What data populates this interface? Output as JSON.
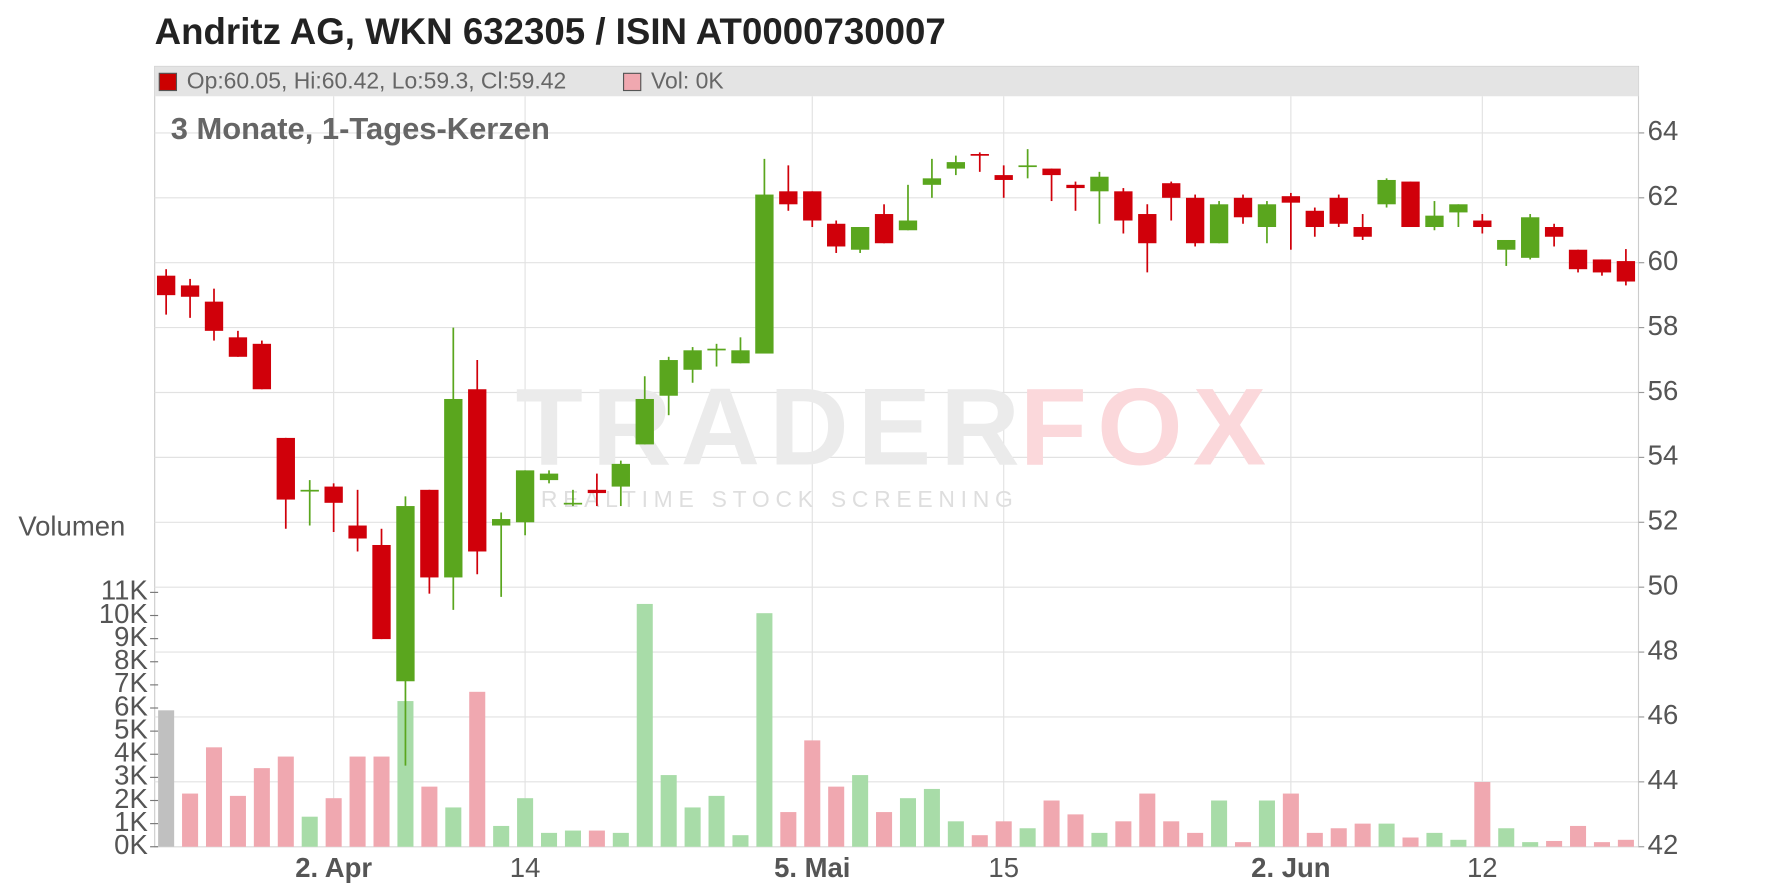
{
  "chart_data": {
    "type": "candlestick",
    "title": "Andritz AG, WKN 632305 / ISIN AT0000730007",
    "subtitle": "3 Monate, 1-Tages-Kerzen",
    "volume_label": "Volumen",
    "legend": [
      {
        "color": "#cc0000",
        "label": "Op:60.05, Hi:60.42, Lo:59.3, Cl:59.42"
      },
      {
        "color": "#f0a8b0",
        "label": "Vol: 0K"
      }
    ],
    "watermark": {
      "brand_left": "TRADER",
      "brand_right": "FOX",
      "tagline": "REALTIME STOCK SCREENING"
    },
    "categories": [
      null,
      null,
      null,
      null,
      null,
      null,
      null,
      "2. Apr",
      null,
      null,
      null,
      null,
      null,
      null,
      null,
      "14",
      null,
      null,
      null,
      null,
      null,
      null,
      null,
      null,
      null,
      null,
      null,
      "5. Mai",
      null,
      null,
      null,
      null,
      null,
      null,
      null,
      "15",
      null,
      null,
      null,
      null,
      null,
      null,
      null,
      null,
      null,
      null,
      null,
      "2. Jun",
      null,
      null,
      null,
      null,
      null,
      null,
      null,
      "12",
      null,
      null,
      null,
      null,
      null,
      null
    ],
    "open": [
      59.6,
      59.3,
      58.8,
      57.7,
      57.5,
      54.6,
      53.0,
      53.1,
      51.9,
      51.3,
      47.1,
      53.0,
      50.3,
      56.1,
      51.9,
      52.0,
      53.3,
      52.6,
      53.0,
      53.1,
      54.4,
      55.9,
      56.7,
      57.3,
      56.9,
      57.2,
      62.2,
      62.2,
      61.2,
      60.4,
      61.5,
      61.0,
      62.4,
      62.9,
      63.35,
      62.7,
      62.95,
      62.9,
      62.4,
      62.2,
      62.2,
      61.5,
      62.45,
      62.0,
      60.6,
      62.0,
      61.1,
      62.05,
      61.6,
      62.0,
      61.1,
      61.8,
      62.5,
      61.1,
      61.55,
      61.3,
      60.4,
      60.15,
      61.1,
      60.4,
      60.1,
      60.05
    ],
    "high": [
      59.8,
      59.5,
      59.2,
      57.9,
      57.6,
      54.6,
      53.3,
      53.2,
      53.0,
      51.8,
      52.8,
      53.0,
      58.0,
      57.0,
      52.3,
      53.6,
      53.6,
      53.0,
      53.5,
      53.9,
      56.5,
      57.1,
      57.4,
      57.5,
      57.7,
      63.2,
      63.0,
      62.2,
      61.3,
      61.1,
      61.8,
      62.4,
      63.2,
      63.3,
      63.4,
      63.0,
      63.5,
      62.9,
      62.5,
      62.8,
      62.3,
      61.8,
      62.5,
      62.1,
      61.9,
      62.1,
      61.9,
      62.15,
      61.7,
      62.1,
      61.5,
      62.6,
      62.5,
      61.9,
      61.8,
      61.5,
      60.7,
      61.5,
      61.2,
      60.4,
      60.1,
      60.42
    ],
    "low": [
      58.4,
      58.3,
      57.6,
      57.1,
      56.1,
      51.8,
      51.9,
      51.7,
      51.1,
      48.4,
      44.5,
      49.8,
      49.3,
      50.4,
      49.7,
      51.6,
      53.2,
      52.5,
      52.5,
      52.5,
      54.4,
      55.3,
      56.3,
      56.8,
      56.9,
      57.2,
      61.6,
      61.1,
      60.3,
      60.3,
      60.6,
      61.0,
      62.0,
      62.7,
      62.8,
      62.0,
      62.6,
      61.9,
      61.6,
      61.2,
      60.9,
      59.7,
      61.3,
      60.5,
      60.6,
      61.2,
      60.6,
      60.4,
      60.8,
      61.1,
      60.7,
      61.7,
      61.1,
      61.0,
      61.1,
      60.9,
      59.9,
      60.1,
      60.5,
      59.7,
      59.6,
      59.3
    ],
    "close": [
      59.0,
      58.95,
      57.9,
      57.1,
      56.1,
      52.7,
      53.0,
      52.6,
      51.5,
      48.4,
      52.5,
      50.3,
      55.8,
      51.1,
      52.1,
      53.6,
      53.5,
      52.6,
      52.9,
      53.8,
      55.8,
      57.0,
      57.3,
      57.35,
      57.3,
      62.1,
      61.8,
      61.3,
      60.5,
      61.1,
      60.6,
      61.3,
      62.6,
      63.1,
      63.3,
      62.55,
      63.0,
      62.7,
      62.3,
      62.65,
      61.3,
      60.6,
      62.0,
      60.6,
      61.8,
      61.4,
      61.8,
      61.85,
      61.1,
      61.2,
      60.8,
      62.55,
      61.1,
      61.45,
      61.8,
      61.1,
      60.7,
      61.4,
      60.8,
      59.8,
      59.7,
      59.42
    ],
    "volume": [
      5.9,
      2.3,
      4.3,
      2.2,
      3.4,
      3.9,
      1.3,
      2.1,
      3.9,
      3.9,
      6.3,
      2.6,
      1.7,
      6.7,
      0.9,
      2.1,
      0.6,
      0.7,
      0.7,
      0.6,
      10.5,
      3.1,
      1.7,
      2.2,
      0.5,
      10.1,
      1.5,
      4.6,
      2.6,
      3.1,
      1.5,
      2.1,
      2.5,
      1.1,
      0.5,
      1.1,
      0.8,
      2.0,
      1.4,
      0.6,
      1.1,
      2.3,
      1.1,
      0.6,
      2.0,
      0.2,
      2.0,
      2.3,
      0.6,
      0.8,
      1.0,
      1.0,
      0.4,
      0.6,
      0.3,
      2.8,
      0.8,
      0.2,
      0.25,
      0.9,
      0.2,
      0.3
    ],
    "up_color": "#5aa61e",
    "down_color": "#d0000a",
    "volume_up_color": "#a8dca8",
    "volume_down_color": "#f0a8b0",
    "volume_first_color": "#c0c0c0",
    "ylim": [
      42,
      64
    ],
    "yticks": [
      42,
      44,
      46,
      48,
      50,
      52,
      54,
      56,
      58,
      60,
      62,
      64
    ],
    "volume_lim": [
      0,
      11
    ],
    "volume_ticks": [
      {
        "value": 0,
        "label": "0K"
      },
      {
        "value": 1,
        "label": "1K"
      },
      {
        "value": 2,
        "label": "2K"
      },
      {
        "value": 3,
        "label": "3K"
      },
      {
        "value": 4,
        "label": "4K"
      },
      {
        "value": 5,
        "label": "5K"
      },
      {
        "value": 6,
        "label": "6K"
      },
      {
        "value": 7,
        "label": "7K"
      },
      {
        "value": 8,
        "label": "8K"
      },
      {
        "value": 9,
        "label": "9K"
      },
      {
        "value": 10,
        "label": "10K"
      },
      {
        "value": 11,
        "label": "11K"
      }
    ],
    "grid": true
  }
}
